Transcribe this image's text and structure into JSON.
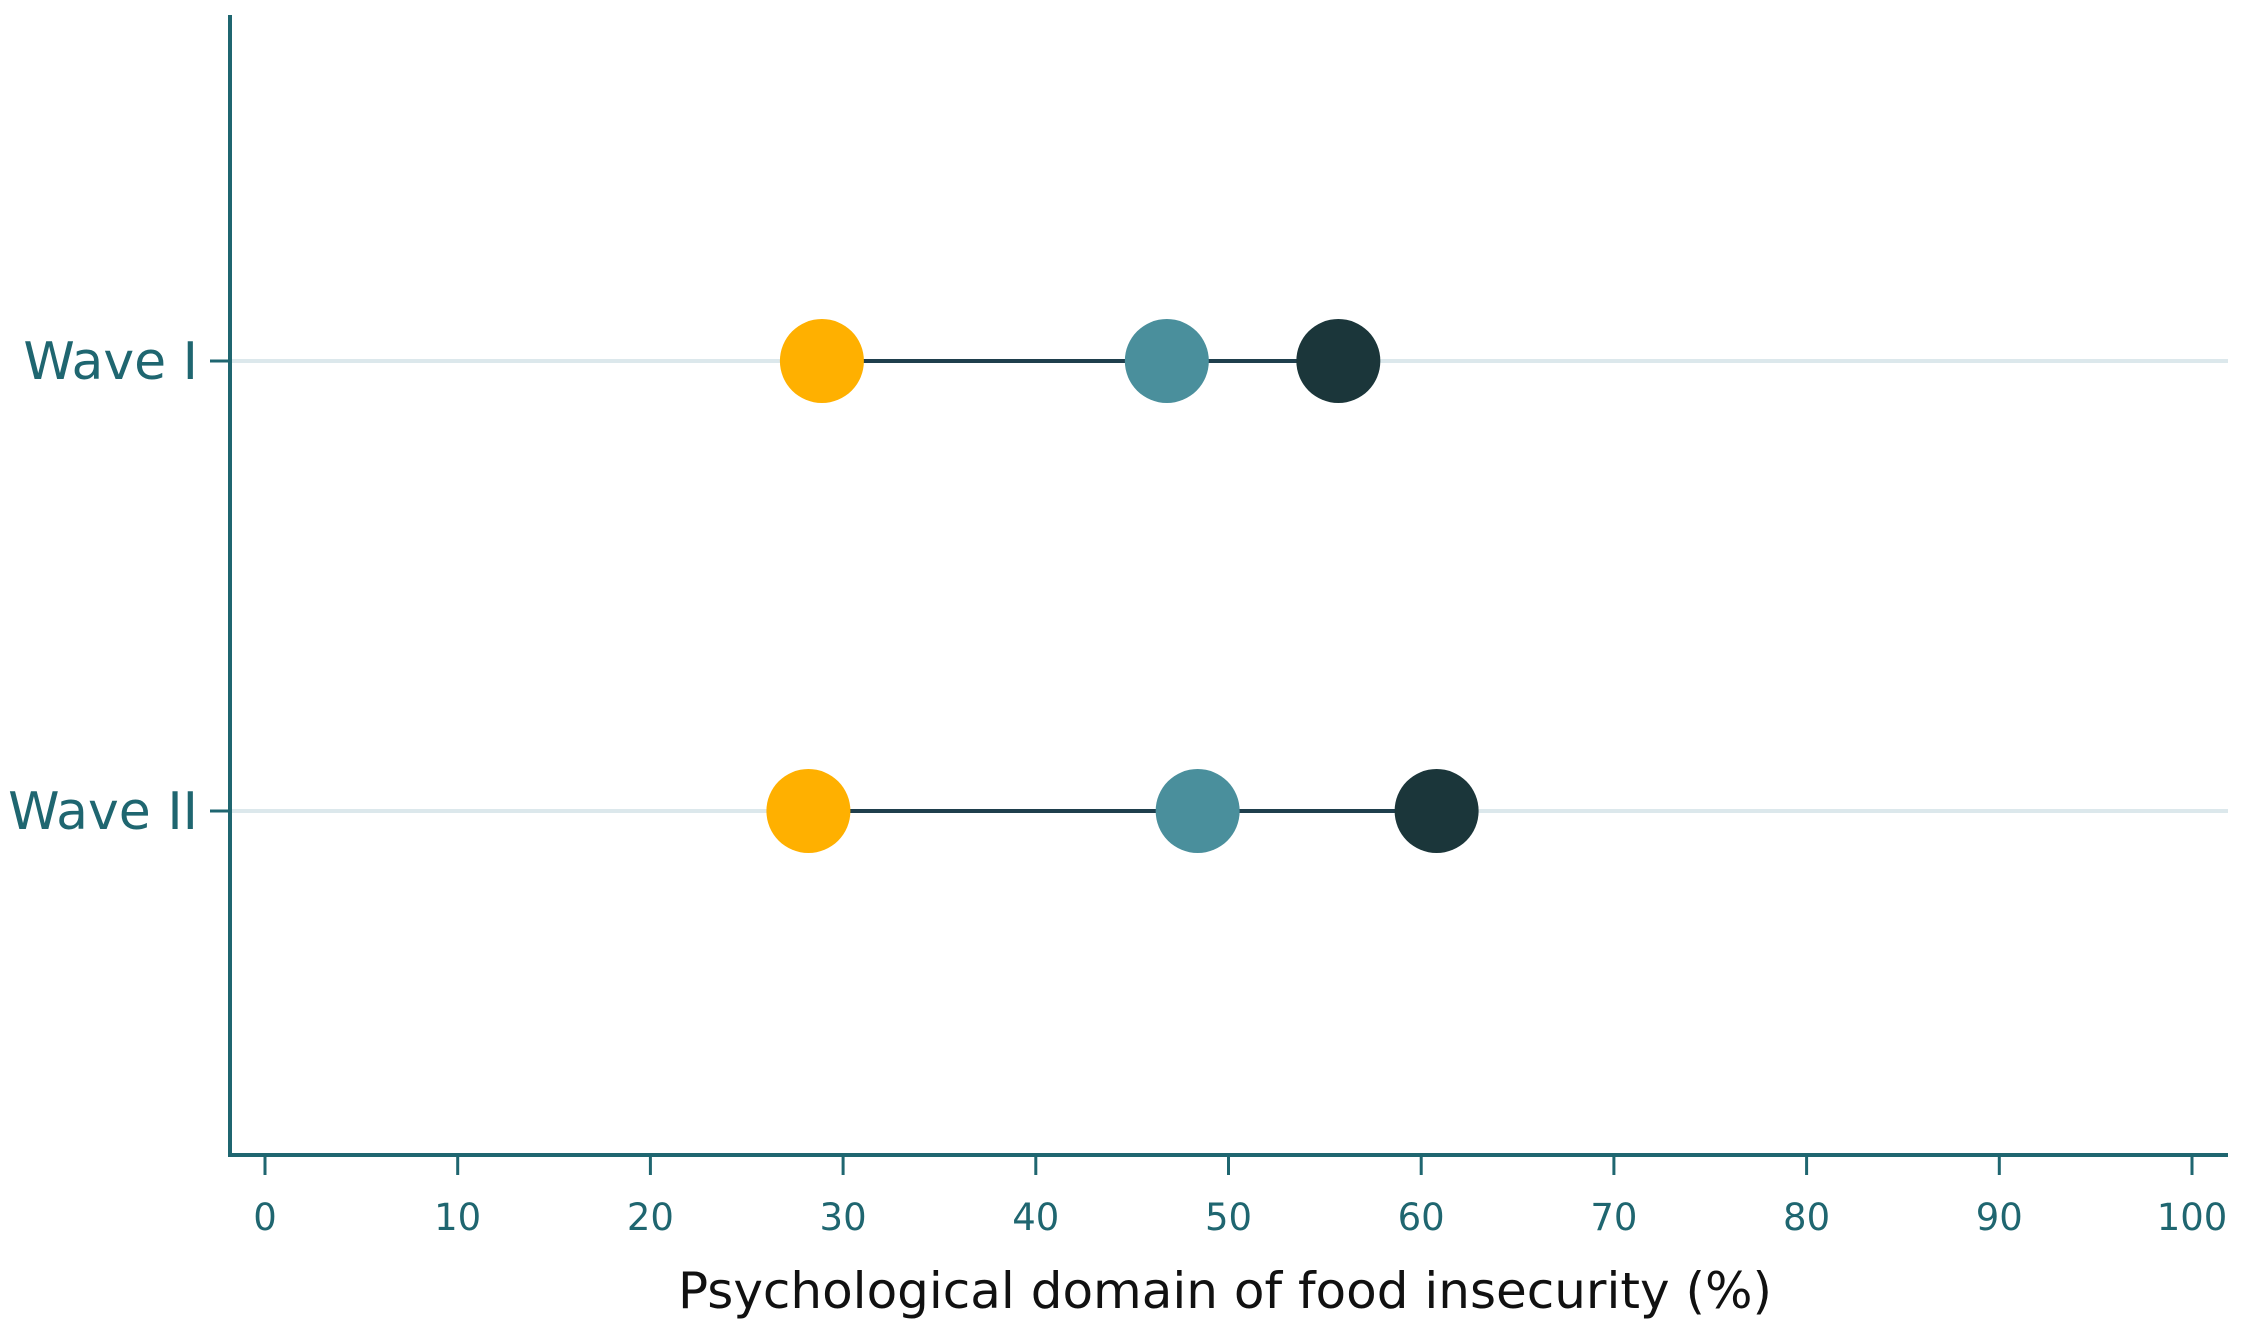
{
  "chart_data": {
    "type": "dumbbell",
    "title": "",
    "xlabel": "Psychological domain of food insecurity (%)",
    "ylabel": "",
    "xlim": [
      0,
      100
    ],
    "xticks": [
      0,
      10,
      20,
      30,
      40,
      50,
      60,
      70,
      80,
      90,
      100
    ],
    "categories": [
      "Wave I",
      "Wave II"
    ],
    "grid": "horizontal lines at category rows",
    "legend": "none",
    "series": [
      {
        "color": "#FFB000",
        "values": [
          28.9,
          28.2
        ]
      },
      {
        "color": "#4A8F9C",
        "values": [
          46.8,
          48.4
        ]
      },
      {
        "color": "#1B363A",
        "values": [
          55.7,
          60.8
        ]
      }
    ],
    "colors": {
      "axis": "#1f6670",
      "gridline": "#dce8ec",
      "connector": "#1f3f4d",
      "tick_text": "#1f6670",
      "title_text": "#111111"
    }
  }
}
